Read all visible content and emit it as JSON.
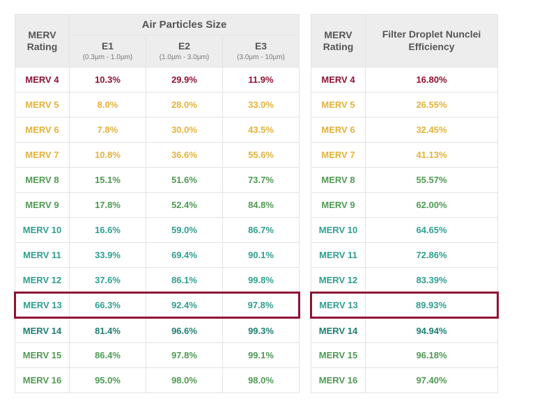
{
  "headers": {
    "merv_rating": "MERV Rating",
    "air_particles": "Air Particles Size",
    "e1": "E1",
    "e1_range": "(0.3µm - 1.0µm)",
    "e2": "E2",
    "e2_range": "(1.0µm - 3.0µm)",
    "e3": "E3",
    "e3_range": "(3.0µm - 10µm)",
    "droplet": "Filter Droplet Nunclei Efficiency"
  },
  "colors": {
    "maroon": "#8f1233",
    "yellow": "#e4b23a",
    "green": "#4f9a52",
    "teal": "#2f9e8f",
    "darkteal": "#1e7e72",
    "header_bg": "#ededed",
    "border": "#e3e3e3",
    "highlight_border": "#8f1233"
  },
  "highlight_row_index": 9,
  "rows": [
    {
      "label": "MERV 4",
      "e1": "10.3%",
      "e2": "29.9%",
      "e3": "11.9%",
      "eff": "16.80%",
      "color": "#8f1233"
    },
    {
      "label": "MERV 5",
      "e1": "8.0%",
      "e2": "28.0%",
      "e3": "33.0%",
      "eff": "26.55%",
      "color": "#e4b23a"
    },
    {
      "label": "MERV 6",
      "e1": "7.8%",
      "e2": "30.0%",
      "e3": "43.5%",
      "eff": "32.45%",
      "color": "#e4b23a"
    },
    {
      "label": "MERV 7",
      "e1": "10.8%",
      "e2": "36.6%",
      "e3": "55.6%",
      "eff": "41.13%",
      "color": "#e4b23a"
    },
    {
      "label": "MERV 8",
      "e1": "15.1%",
      "e2": "51.6%",
      "e3": "73.7%",
      "eff": "55.57%",
      "color": "#4f9a52"
    },
    {
      "label": "MERV 9",
      "e1": "17.8%",
      "e2": "52.4%",
      "e3": "84.8%",
      "eff": "62.00%",
      "color": "#4f9a52"
    },
    {
      "label": "MERV 10",
      "e1": "16.6%",
      "e2": "59.0%",
      "e3": "86.7%",
      "eff": "64.65%",
      "color": "#2f9e8f"
    },
    {
      "label": "MERV 11",
      "e1": "33.9%",
      "e2": "69.4%",
      "e3": "90.1%",
      "eff": "72.86%",
      "color": "#2f9e8f"
    },
    {
      "label": "MERV 12",
      "e1": "37.6%",
      "e2": "86.1%",
      "e3": "99.8%",
      "eff": "83.39%",
      "color": "#2f9e8f"
    },
    {
      "label": "MERV 13",
      "e1": "66.3%",
      "e2": "92.4%",
      "e3": "97.8%",
      "eff": "89.93%",
      "color": "#2f9e8f"
    },
    {
      "label": "MERV 14",
      "e1": "81.4%",
      "e2": "96.6%",
      "e3": "99.3%",
      "eff": "94.94%",
      "color": "#1e7e72"
    },
    {
      "label": "MERV 15",
      "e1": "86.4%",
      "e2": "97.8%",
      "e3": "99.1%",
      "eff": "96.18%",
      "color": "#4f9a52"
    },
    {
      "label": "MERV 16",
      "e1": "95.0%",
      "e2": "98.0%",
      "e3": "98.0%",
      "eff": "97.40%",
      "color": "#4f9a52"
    }
  ]
}
